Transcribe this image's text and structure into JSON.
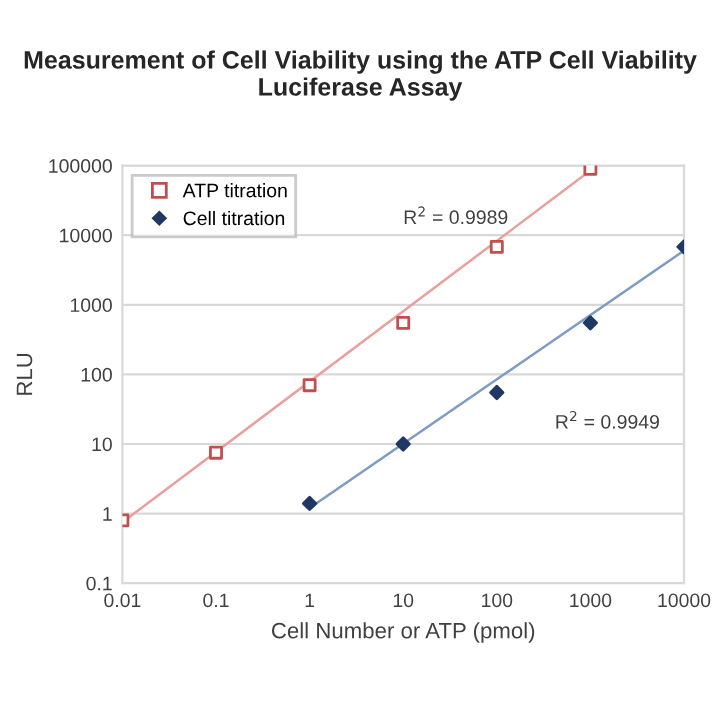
{
  "chart_data": {
    "type": "scatter",
    "title": "Measurement of Cell Viability using the ATP Cell Viability Luciferase Assay",
    "xlabel": "Cell Number or ATP (pmol)",
    "ylabel": "RLU",
    "log": "xy",
    "xlim": [
      0.01,
      10000
    ],
    "xticks": [
      0.01,
      0.1,
      1,
      10,
      100,
      1000,
      10000
    ],
    "ylim": [
      0.1,
      100000
    ],
    "yticks": [
      0.1,
      1,
      10,
      100,
      1000,
      10000,
      100000
    ],
    "grid": "y",
    "legend": "top left",
    "series": [
      {
        "name": "ATP titration",
        "color": "#c0504d",
        "marker": "square",
        "x": [
          0.01,
          0.1,
          1,
          10,
          100,
          1000
        ],
        "values": [
          0.8,
          7.5,
          70,
          550,
          6800,
          90000
        ]
      },
      {
        "name": "Cell titration",
        "color": "#1f3864",
        "marker": "diamond",
        "x": [
          1,
          10,
          100,
          1000,
          10000
        ],
        "values": [
          1.4,
          10,
          55,
          550,
          6800
        ]
      },
      {
        "type": "line",
        "color": "#e8a09e",
        "x": [
          0.01,
          1000
        ],
        "values": [
          0.75,
          85000
        ]
      },
      {
        "type": "line",
        "color": "#7f9cc4",
        "x": [
          1,
          10000
        ],
        "values": [
          1.2,
          6000
        ]
      }
    ],
    "annotations": [
      "R$^{2}$ = 0.9989",
      "R$^{2}$ = 0.9949"
    ]
  }
}
